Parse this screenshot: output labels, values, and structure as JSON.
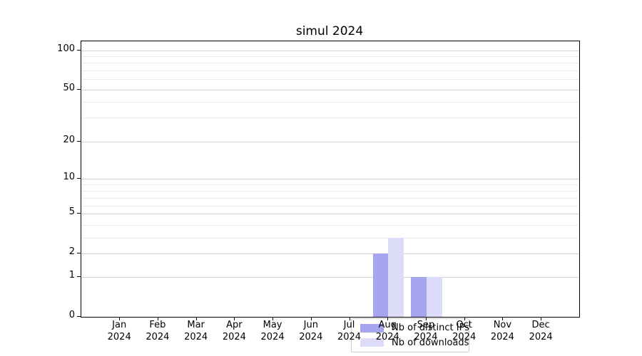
{
  "title": "simul 2024",
  "chart_data": {
    "type": "bar",
    "title": "simul 2024",
    "categories": [
      "Jan 2024",
      "Feb 2024",
      "Mar 2024",
      "Apr 2024",
      "May 2024",
      "Jun 2024",
      "Jul 2024",
      "Aug 2024",
      "Sep 2024",
      "Oct 2024",
      "Nov 2024",
      "Dec 2024"
    ],
    "series": [
      {
        "name": "Nb of distinct IPs",
        "color": "#a5a5f0",
        "values": [
          0,
          0,
          0,
          0,
          0,
          0,
          0,
          2,
          1,
          0,
          0,
          0
        ]
      },
      {
        "name": "Nb of downloads",
        "color": "#dcdcf8",
        "values": [
          0,
          0,
          0,
          0,
          0,
          0,
          0,
          3,
          1,
          0,
          0,
          0
        ]
      }
    ],
    "xlabel": "",
    "ylabel": "",
    "yscale": "asinh",
    "y_major_ticks": [
      0,
      1,
      2,
      5,
      10,
      20,
      50,
      100
    ],
    "y_minor_gridlines": [
      3,
      4,
      6,
      7,
      8,
      9,
      30,
      40,
      60,
      70,
      80,
      90
    ],
    "ylim": [
      0,
      110
    ],
    "grid": "horizontal major+minor",
    "legend_position": "inside lower-center",
    "colors": {
      "axis": "#000000",
      "grid_major": "#d2d2d2",
      "grid_minor": "#ebebeb",
      "background": "#ffffff"
    }
  },
  "legend": {
    "items": [
      {
        "label": "Nb of distinct IPs"
      },
      {
        "label": "Nb of downloads"
      }
    ]
  }
}
